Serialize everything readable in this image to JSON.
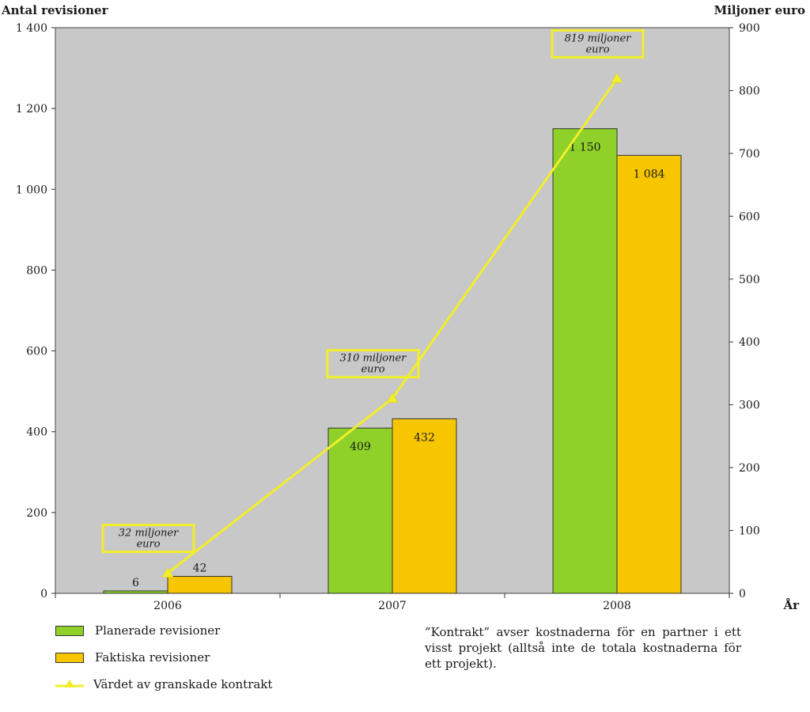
{
  "chart_data": {
    "type": "bar",
    "categories": [
      "2006",
      "2007",
      "2008"
    ],
    "series": [
      {
        "name": "Planerade revisioner",
        "values": [
          6,
          409,
          1150
        ],
        "labels": [
          "6",
          "409",
          "1 150"
        ],
        "color": "#8fd129"
      },
      {
        "name": "Faktiska revisioner",
        "values": [
          42,
          432,
          1084
        ],
        "labels": [
          "42",
          "432",
          "1 084"
        ],
        "color": "#f7c600"
      }
    ],
    "line_series": {
      "name": "Värdet av granskade kontrakt",
      "values": [
        32,
        310,
        819
      ],
      "color": "#f2ee2a",
      "annotations": [
        {
          "line1": "32 miljoner",
          "line2": "euro"
        },
        {
          "line1": "310 miljoner",
          "line2": "euro"
        },
        {
          "line1": "819 miljoner",
          "line2": "euro"
        }
      ]
    },
    "ylabel_left": "Antal revisioner",
    "ylabel_right": "Miljoner euro",
    "xlabel": "År",
    "ylim_left": [
      0,
      1400
    ],
    "ylim_right": [
      0,
      900
    ],
    "yticks_left": [
      "0",
      "200",
      "400",
      "600",
      "800",
      "1 000",
      "1 200",
      "1 400"
    ],
    "yticks_right": [
      "0",
      "100",
      "200",
      "300",
      "400",
      "500",
      "600",
      "700",
      "800",
      "900"
    ],
    "plot_background": "#c8c8c8",
    "grid": false,
    "legend_position": "bottom-left"
  },
  "note": "”Kontrakt” avser kostnaderna för en partner i ett visst projekt (alltså inte de totala kostnaderna för ett projekt)."
}
